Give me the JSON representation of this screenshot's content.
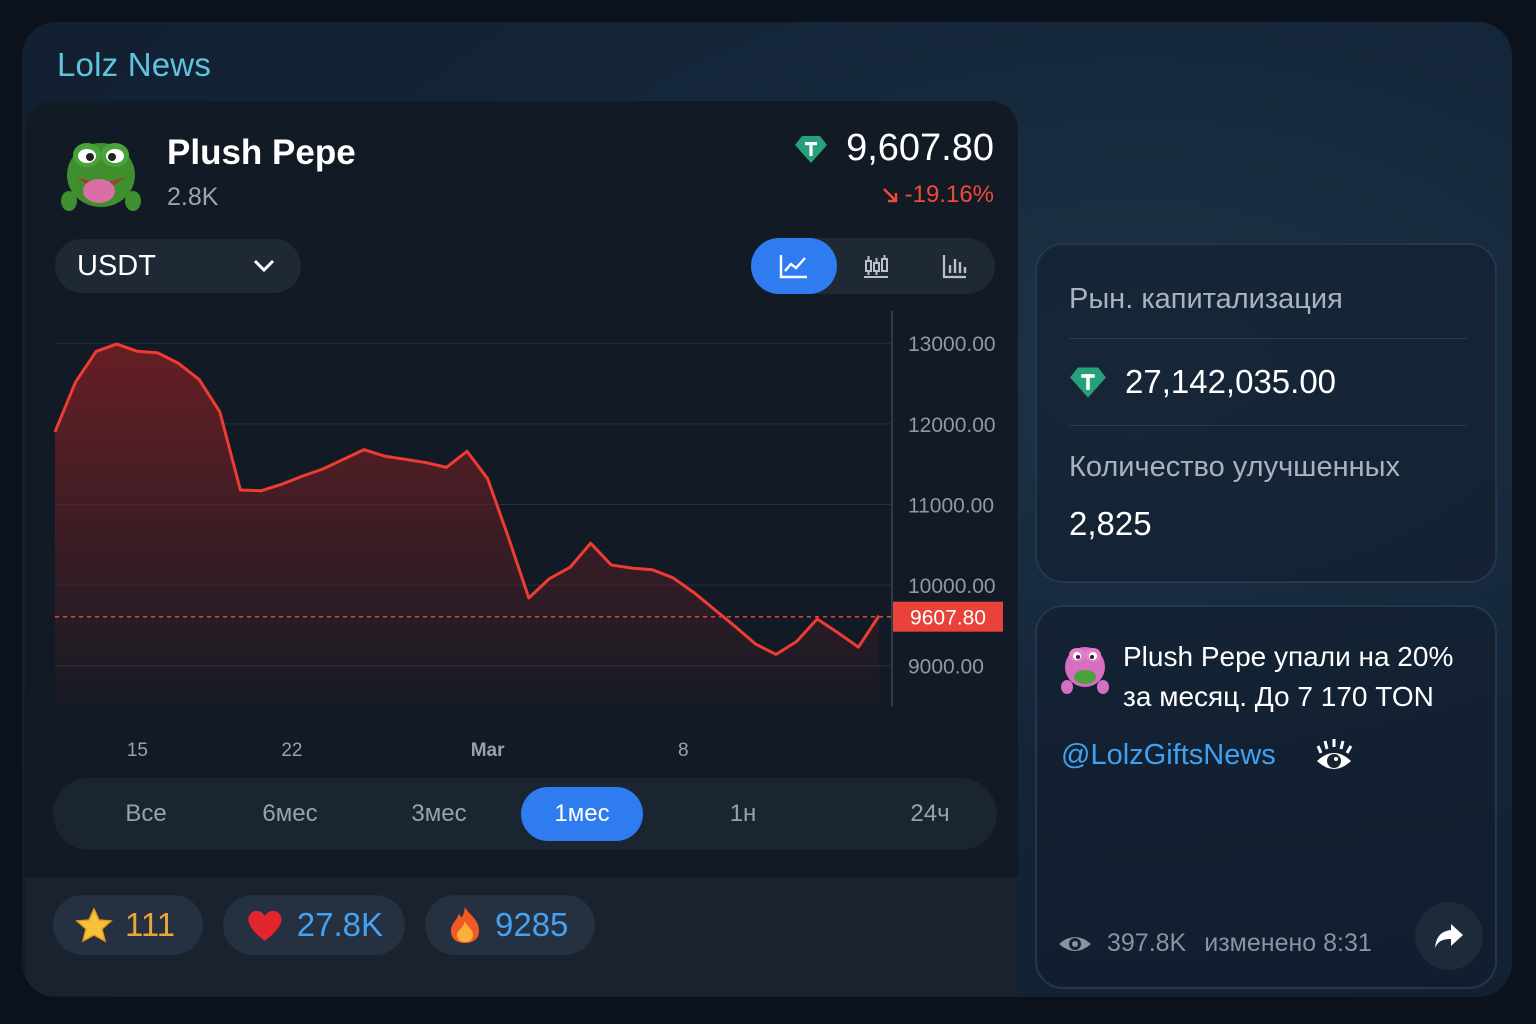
{
  "channel": {
    "name": "Lolz News"
  },
  "gift": {
    "title": "Plush Pepe",
    "count": "2.8K",
    "price": "9,607.80",
    "change": "-19.16%",
    "currency": "USDT",
    "current_price_label": "9607.80"
  },
  "view_modes": [
    "line-chart-icon",
    "candlestick-icon",
    "bar-chart-icon"
  ],
  "chart_data": {
    "type": "area",
    "series": [
      {
        "points": [
          [
            0,
            11900
          ],
          [
            1,
            12520
          ],
          [
            2,
            12900
          ],
          [
            3,
            12990
          ],
          [
            4,
            12900
          ],
          [
            5,
            12880
          ],
          [
            6,
            12750
          ],
          [
            7,
            12550
          ],
          [
            8,
            12150
          ],
          [
            9,
            11180
          ],
          [
            10,
            11170
          ],
          [
            11,
            11250
          ],
          [
            12,
            11350
          ],
          [
            13,
            11440
          ],
          [
            14,
            11560
          ],
          [
            15,
            11680
          ],
          [
            16,
            11600
          ],
          [
            17,
            11560
          ],
          [
            18,
            11520
          ],
          [
            19,
            11460
          ],
          [
            20,
            11660
          ],
          [
            21,
            11320
          ],
          [
            22,
            10600
          ],
          [
            23,
            9840
          ],
          [
            24,
            10080
          ],
          [
            25,
            10220
          ],
          [
            26,
            10520
          ],
          [
            27,
            10250
          ],
          [
            28,
            10210
          ],
          [
            29,
            10190
          ],
          [
            30,
            10090
          ],
          [
            31,
            9910
          ],
          [
            32,
            9700
          ],
          [
            33,
            9490
          ],
          [
            34,
            9270
          ],
          [
            35,
            9140
          ],
          [
            36,
            9300
          ],
          [
            37,
            9580
          ],
          [
            38,
            9410
          ],
          [
            39,
            9230
          ],
          [
            40,
            9620
          ]
        ]
      }
    ],
    "x_ticks": [
      {
        "x": 4,
        "label": "15"
      },
      {
        "x": 11.5,
        "label": "22"
      },
      {
        "x": 21,
        "label": "Mar"
      },
      {
        "x": 30.5,
        "label": "8"
      }
    ],
    "y_ticks": [
      "13000.00",
      "12000.00",
      "11000.00",
      "10000.00",
      "9000.00"
    ],
    "y_values": [
      13000,
      12000,
      11000,
      10000,
      9000
    ],
    "ylim": [
      8500,
      13400
    ],
    "current_value": 9607.8,
    "colors": {
      "line": "#ef3b32",
      "fill": "#6b1f24",
      "current": "#e8423a"
    }
  },
  "ranges": [
    "Все",
    "6мес",
    "3мес",
    "1мес",
    "1н",
    "24ч"
  ],
  "active_range": "1мес",
  "reactions": [
    {
      "icon": "star-icon",
      "count": "111",
      "color": "#e9a43a"
    },
    {
      "icon": "heart-icon",
      "count": "27.8K",
      "color": "#45a2f2"
    },
    {
      "icon": "fire-icon",
      "count": "9285",
      "color": "#45a2f2"
    }
  ],
  "stats": {
    "market_cap_label": "Рын. капитализация",
    "market_cap_value": "27,142,035.00",
    "upgraded_label": "Количество улучшенных",
    "upgraded_value": "2,825"
  },
  "message": {
    "text_line1": "Plush Pepe упали на 20%",
    "text_line2": "за месяц. До 7 170 TON",
    "link": "@LolzGiftsNews",
    "views": "397.8K",
    "edited": "изменено 8:31"
  }
}
